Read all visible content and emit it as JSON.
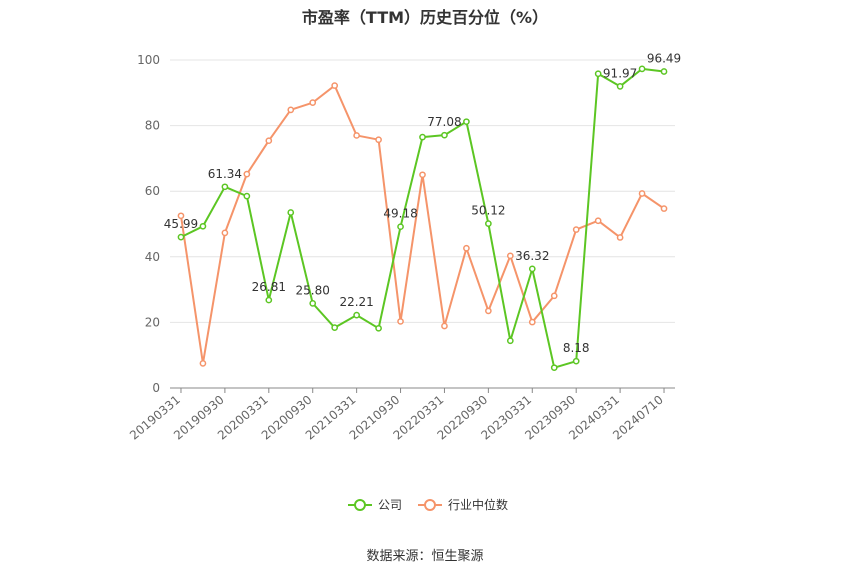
{
  "chart_data": {
    "type": "line",
    "title": "市盈率（TTM）历史百分位（%）",
    "source": "数据来源：恒生聚源",
    "xlabel": "",
    "ylabel": "",
    "ylim": [
      0,
      100
    ],
    "yticks": [
      0,
      20,
      40,
      60,
      80,
      100
    ],
    "grid": true,
    "legend_position": "bottom",
    "x_tick_labels": [
      "20190331",
      "20190930",
      "20200331",
      "20200930",
      "20210331",
      "20210930",
      "20220331",
      "20220930",
      "20230331",
      "20230930",
      "20240331",
      "20240710"
    ],
    "x_tick_indices": [
      0,
      2,
      4,
      6,
      8,
      10,
      12,
      14,
      16,
      18,
      20,
      22
    ],
    "series": [
      {
        "name": "公司",
        "color": "#5cc623",
        "values": [
          45.99,
          49.3,
          61.34,
          58.5,
          26.81,
          53.5,
          25.8,
          18.4,
          22.21,
          18.2,
          49.18,
          76.5,
          77.08,
          81.2,
          50.12,
          14.4,
          36.32,
          6.2,
          8.18,
          95.8,
          91.97,
          97.3,
          96.49
        ],
        "labels": {
          "0": "45.99",
          "2": "61.34",
          "4": "26.81",
          "6": "25.80",
          "8": "22.21",
          "10": "49.18",
          "12": "77.08",
          "14": "50.12",
          "16": "36.32",
          "18": "8.18",
          "20": "91.97",
          "22": "96.49"
        }
      },
      {
        "name": "行业中位数",
        "color": "#f5946a",
        "values": [
          52.5,
          7.5,
          47.3,
          65.2,
          75.4,
          84.8,
          87.0,
          92.2,
          77.0,
          75.7,
          20.3,
          65.0,
          18.9,
          42.6,
          23.5,
          40.3,
          20.1,
          28.1,
          48.3,
          51.0,
          45.9,
          59.3,
          54.7
        ]
      }
    ]
  }
}
